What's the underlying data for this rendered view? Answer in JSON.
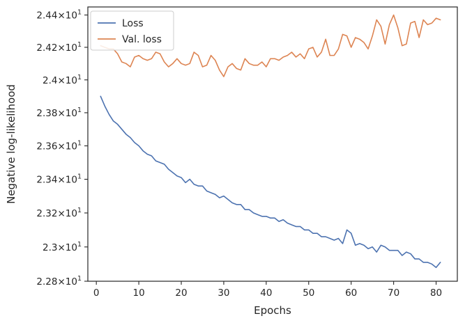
{
  "chart_data": {
    "type": "line",
    "xlabel": "Epochs",
    "ylabel": "Negative log-likelihood",
    "xlim": [
      -2.0,
      85.0
    ],
    "ylim": [
      22.8,
      24.45
    ],
    "y_scale": "log",
    "grid": false,
    "legend_position": "top-left",
    "x_ticks": [
      {
        "value": 0,
        "label": "0"
      },
      {
        "value": 10,
        "label": "10"
      },
      {
        "value": 20,
        "label": "20"
      },
      {
        "value": 30,
        "label": "30"
      },
      {
        "value": 40,
        "label": "40"
      },
      {
        "value": 50,
        "label": "50"
      },
      {
        "value": 60,
        "label": "60"
      },
      {
        "value": 70,
        "label": "70"
      },
      {
        "value": 80,
        "label": "80"
      }
    ],
    "y_ticks": [
      {
        "value": 22.8,
        "mantissa": "2.28",
        "base": "10",
        "exp": "1"
      },
      {
        "value": 23.0,
        "mantissa": "2.3",
        "base": "10",
        "exp": "1"
      },
      {
        "value": 23.2,
        "mantissa": "2.32",
        "base": "10",
        "exp": "1"
      },
      {
        "value": 23.4,
        "mantissa": "2.34",
        "base": "10",
        "exp": "1"
      },
      {
        "value": 23.6,
        "mantissa": "2.36",
        "base": "10",
        "exp": "1"
      },
      {
        "value": 23.8,
        "mantissa": "2.38",
        "base": "10",
        "exp": "1"
      },
      {
        "value": 24.0,
        "mantissa": "2.4",
        "base": "10",
        "exp": "1"
      },
      {
        "value": 24.2,
        "mantissa": "2.42",
        "base": "10",
        "exp": "1"
      },
      {
        "value": 24.4,
        "mantissa": "2.44",
        "base": "10",
        "exp": "1"
      }
    ],
    "x": [
      1,
      2,
      3,
      4,
      5,
      6,
      7,
      8,
      9,
      10,
      11,
      12,
      13,
      14,
      15,
      16,
      17,
      18,
      19,
      20,
      21,
      22,
      23,
      24,
      25,
      26,
      27,
      28,
      29,
      30,
      31,
      32,
      33,
      34,
      35,
      36,
      37,
      38,
      39,
      40,
      41,
      42,
      43,
      44,
      45,
      46,
      47,
      48,
      49,
      50,
      51,
      52,
      53,
      54,
      55,
      56,
      57,
      58,
      59,
      60,
      61,
      62,
      63,
      64,
      65,
      66,
      67,
      68,
      69,
      70,
      71,
      72,
      73,
      74,
      75,
      76,
      77,
      78,
      79,
      80,
      81
    ],
    "series": [
      {
        "name": "Loss",
        "color": "#4c72b0",
        "values": [
          23.9,
          23.84,
          23.79,
          23.75,
          23.73,
          23.7,
          23.67,
          23.65,
          23.62,
          23.6,
          23.57,
          23.55,
          23.54,
          23.51,
          23.5,
          23.49,
          23.46,
          23.44,
          23.42,
          23.41,
          23.38,
          23.4,
          23.37,
          23.36,
          23.36,
          23.33,
          23.32,
          23.31,
          23.29,
          23.3,
          23.28,
          23.26,
          23.25,
          23.25,
          23.22,
          23.22,
          23.2,
          23.19,
          23.18,
          23.18,
          23.17,
          23.17,
          23.15,
          23.16,
          23.14,
          23.13,
          23.12,
          23.12,
          23.1,
          23.1,
          23.08,
          23.08,
          23.06,
          23.06,
          23.05,
          23.04,
          23.05,
          23.02,
          23.1,
          23.08,
          23.01,
          23.02,
          23.01,
          22.99,
          23.0,
          22.97,
          23.01,
          23.0,
          22.98,
          22.98,
          22.98,
          22.95,
          22.97,
          22.96,
          22.93,
          22.93,
          22.91,
          22.91,
          22.9,
          22.88,
          22.91
        ]
      },
      {
        "name": "Val. loss",
        "color": "#dd8452",
        "values": [
          24.21,
          24.2,
          24.19,
          24.19,
          24.16,
          24.11,
          24.1,
          24.08,
          24.14,
          24.15,
          24.13,
          24.12,
          24.13,
          24.17,
          24.16,
          24.11,
          24.08,
          24.1,
          24.13,
          24.1,
          24.09,
          24.1,
          24.17,
          24.15,
          24.08,
          24.09,
          24.15,
          24.12,
          24.06,
          24.02,
          24.08,
          24.1,
          24.07,
          24.06,
          24.13,
          24.1,
          24.09,
          24.09,
          24.11,
          24.08,
          24.13,
          24.13,
          24.12,
          24.14,
          24.15,
          24.17,
          24.14,
          24.16,
          24.13,
          24.19,
          24.2,
          24.14,
          24.17,
          24.25,
          24.15,
          24.15,
          24.19,
          24.28,
          24.27,
          24.2,
          24.26,
          24.25,
          24.23,
          24.19,
          24.27,
          24.37,
          24.33,
          24.22,
          24.34,
          24.4,
          24.32,
          24.21,
          24.22,
          24.35,
          24.36,
          24.26,
          24.37,
          24.34,
          24.35,
          24.38,
          24.37
        ]
      }
    ]
  }
}
